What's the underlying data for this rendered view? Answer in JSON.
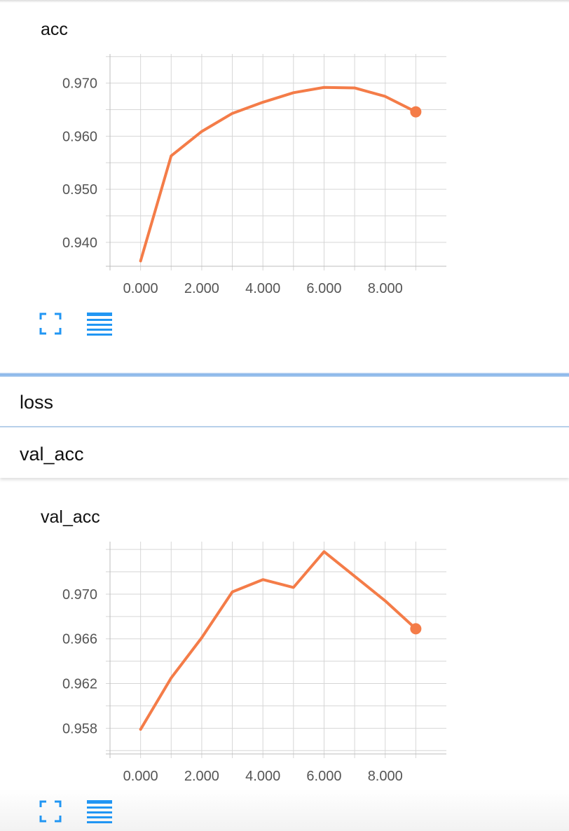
{
  "colors": {
    "series_line": "#f47c48",
    "grid": "#d6d6d6",
    "icon_blue": "#2196f3",
    "tick_text": "#555555"
  },
  "sections": {
    "loss_label": "loss",
    "val_acc_label": "val_acc"
  },
  "toolbar_icons": [
    "fullscreen-icon",
    "data-table-icon"
  ],
  "chart_data": [
    {
      "type": "line",
      "title": "acc",
      "xlabel": "",
      "ylabel": "",
      "x": [
        0,
        1,
        2,
        3,
        4,
        5,
        6,
        7,
        8,
        9
      ],
      "series": [
        {
          "values": [
            0.9365,
            0.9563,
            0.9609,
            0.9643,
            0.9664,
            0.9682,
            0.9692,
            0.9691,
            0.9675,
            0.9646
          ]
        }
      ],
      "xlim": [
        -1,
        10
      ],
      "ylim": [
        0.9355,
        0.9755
      ],
      "x_ticks": [
        0,
        2,
        4,
        6,
        8
      ],
      "x_tick_labels": [
        "0.000",
        "2.000",
        "4.000",
        "6.000",
        "8.000"
      ],
      "y_ticks": [
        0.94,
        0.95,
        0.96,
        0.97
      ],
      "y_tick_labels": [
        "0.940",
        "0.950",
        "0.960",
        "0.970"
      ],
      "grid": true,
      "last_point_marker": true
    },
    {
      "type": "line",
      "title": "val_acc",
      "xlabel": "",
      "ylabel": "",
      "x": [
        0,
        1,
        2,
        3,
        4,
        5,
        6,
        7,
        8,
        9
      ],
      "series": [
        {
          "values": [
            0.9579,
            0.9625,
            0.9661,
            0.9702,
            0.9713,
            0.9706,
            0.9738,
            0.9716,
            0.9694,
            0.9669
          ]
        }
      ],
      "xlim": [
        -1,
        10
      ],
      "ylim": [
        0.9557,
        0.9747
      ],
      "x_ticks": [
        0,
        2,
        4,
        6,
        8
      ],
      "x_tick_labels": [
        "0.000",
        "2.000",
        "4.000",
        "6.000",
        "8.000"
      ],
      "y_ticks": [
        0.958,
        0.962,
        0.966,
        0.97
      ],
      "y_tick_labels": [
        "0.958",
        "0.962",
        "0.966",
        "0.970"
      ],
      "grid": true,
      "last_point_marker": true
    }
  ]
}
